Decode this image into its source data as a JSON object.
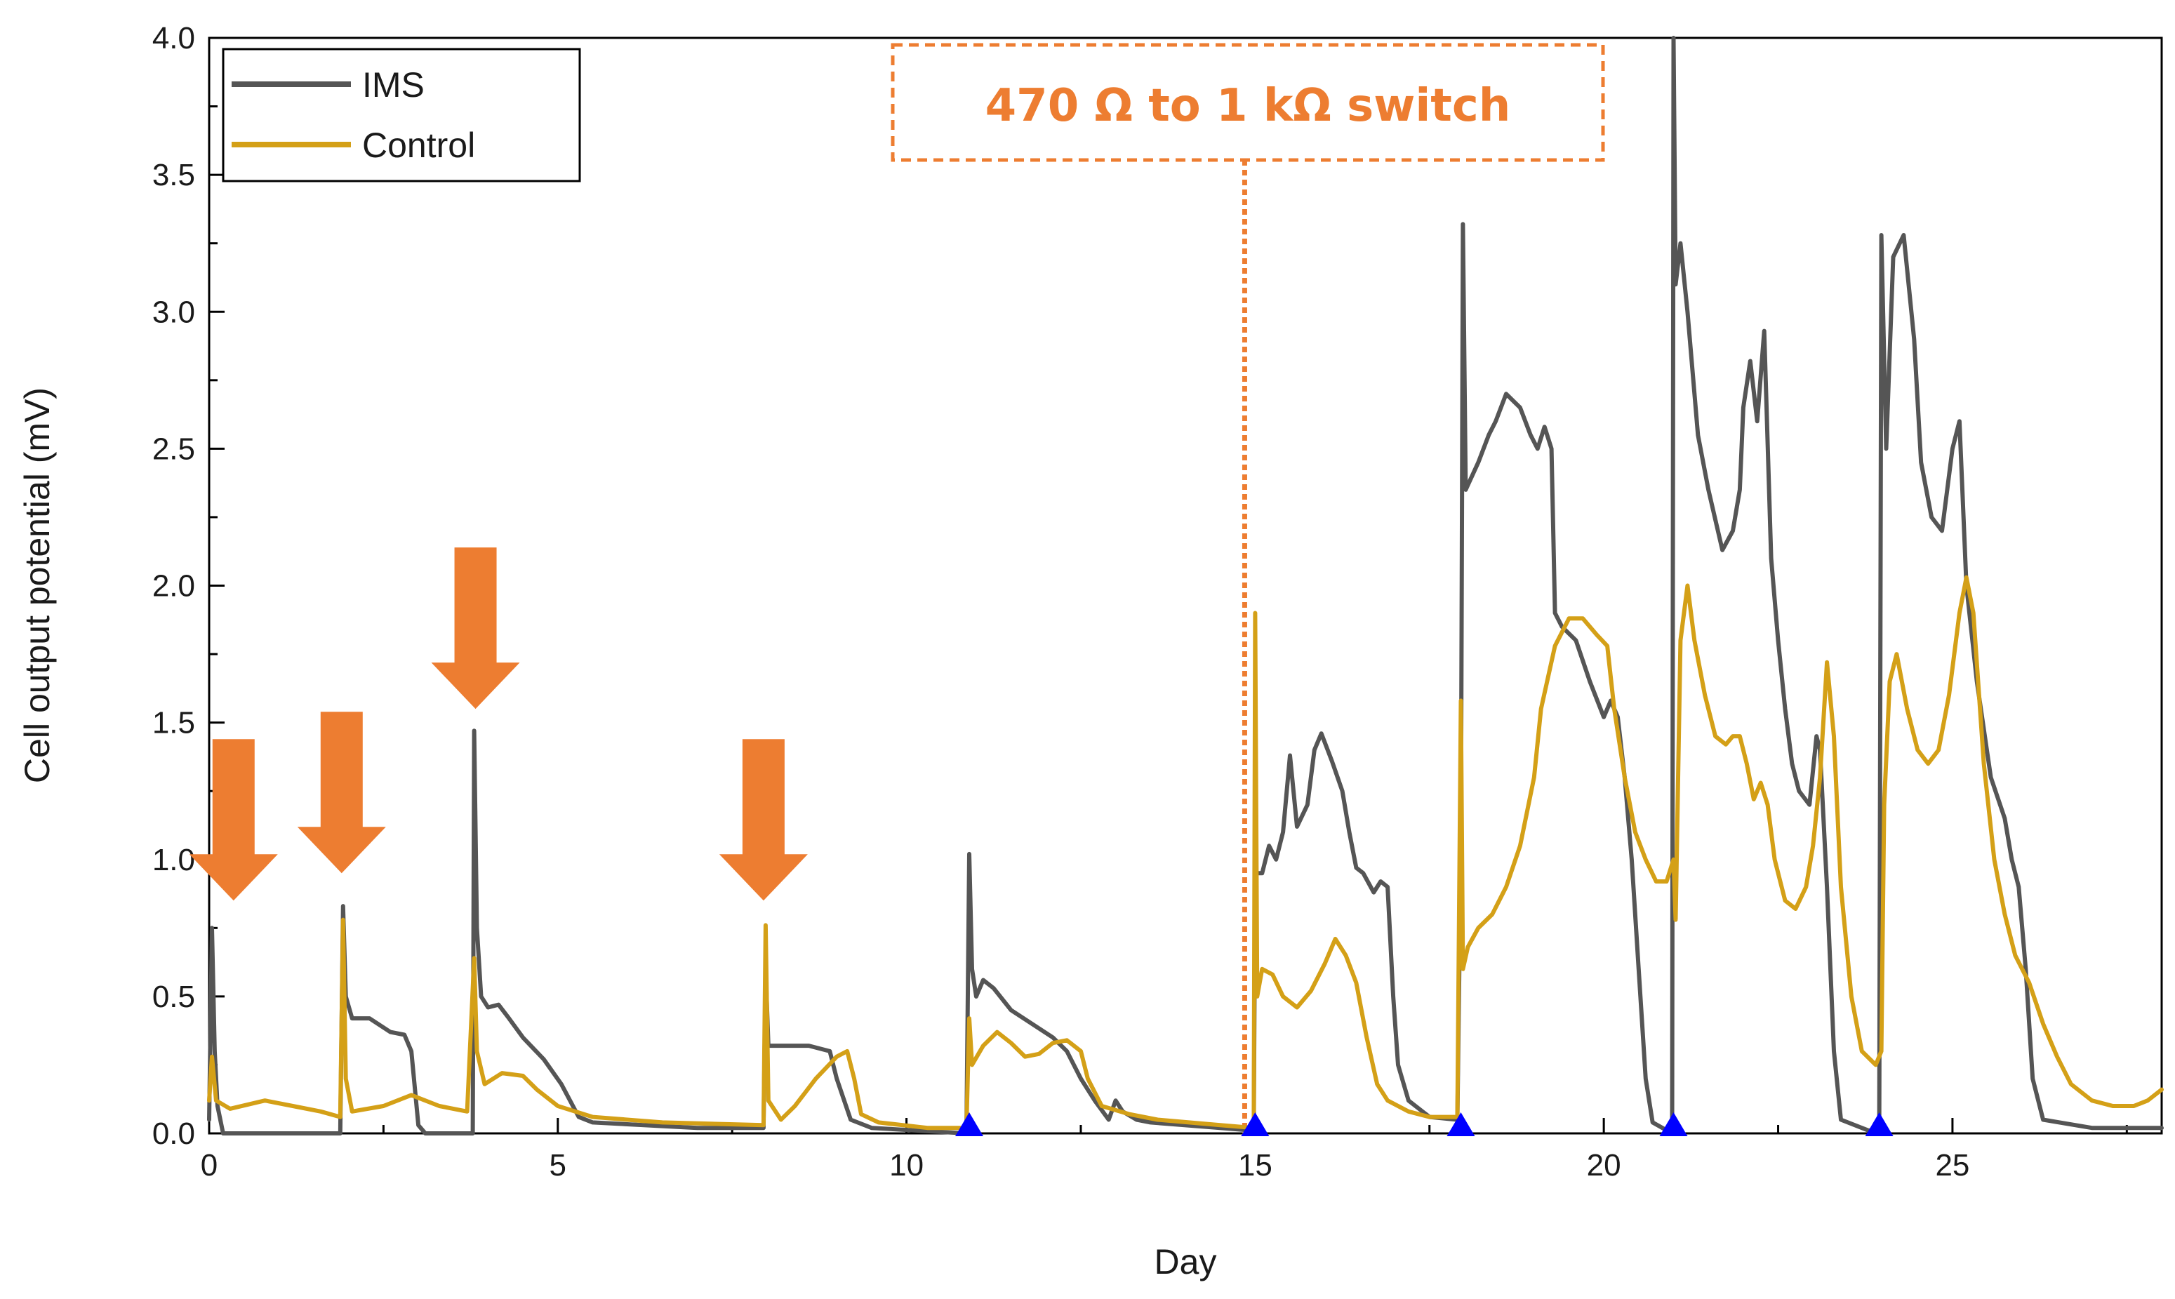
{
  "chart_data": {
    "type": "line",
    "title": "",
    "xlabel": "Day",
    "ylabel": "Cell output potential (mV)",
    "xlim": [
      0,
      28
    ],
    "ylim": [
      0,
      4.0
    ],
    "x_ticks": [
      0,
      5,
      10,
      15,
      20,
      25
    ],
    "y_ticks": [
      0.0,
      0.5,
      1.0,
      1.5,
      2.0,
      2.5,
      3.0,
      3.5,
      4.0
    ],
    "x_tick_labels": [
      "0",
      "5",
      "10",
      "15",
      "20",
      "25"
    ],
    "y_tick_labels": [
      "0.0",
      "0.5",
      "1.0",
      "1.5",
      "2.0",
      "2.5",
      "3.0",
      "3.5",
      "4.0"
    ],
    "legend_position": "top-left",
    "series": [
      {
        "name": "IMS",
        "color": "#555555",
        "points": [
          [
            0,
            0.05
          ],
          [
            0.04,
            0.75
          ],
          [
            0.08,
            0.3
          ],
          [
            0.12,
            0.1
          ],
          [
            0.2,
            0.0
          ],
          [
            1.88,
            0.0
          ],
          [
            1.92,
            0.83
          ],
          [
            1.96,
            0.5
          ],
          [
            2.05,
            0.42
          ],
          [
            2.3,
            0.42
          ],
          [
            2.6,
            0.37
          ],
          [
            2.8,
            0.36
          ],
          [
            2.9,
            0.3
          ],
          [
            3.0,
            0.03
          ],
          [
            3.1,
            0.0
          ],
          [
            3.78,
            0.0
          ],
          [
            3.8,
            1.47
          ],
          [
            3.84,
            0.75
          ],
          [
            3.9,
            0.5
          ],
          [
            4.0,
            0.46
          ],
          [
            4.15,
            0.47
          ],
          [
            4.3,
            0.42
          ],
          [
            4.5,
            0.35
          ],
          [
            4.8,
            0.27
          ],
          [
            5.05,
            0.18
          ],
          [
            5.3,
            0.06
          ],
          [
            5.5,
            0.04
          ],
          [
            7.0,
            0.02
          ],
          [
            7.95,
            0.02
          ],
          [
            7.98,
            0.6
          ],
          [
            8.02,
            0.32
          ],
          [
            8.3,
            0.32
          ],
          [
            8.6,
            0.32
          ],
          [
            8.9,
            0.3
          ],
          [
            9.0,
            0.2
          ],
          [
            9.2,
            0.05
          ],
          [
            9.5,
            0.02
          ],
          [
            10.86,
            0.0
          ],
          [
            10.9,
            1.02
          ],
          [
            10.94,
            0.6
          ],
          [
            11.0,
            0.5
          ],
          [
            11.1,
            0.56
          ],
          [
            11.25,
            0.53
          ],
          [
            11.5,
            0.45
          ],
          [
            11.8,
            0.4
          ],
          [
            12.1,
            0.35
          ],
          [
            12.3,
            0.3
          ],
          [
            12.5,
            0.2
          ],
          [
            12.7,
            0.12
          ],
          [
            12.9,
            0.05
          ],
          [
            13.0,
            0.12
          ],
          [
            13.1,
            0.08
          ],
          [
            13.3,
            0.05
          ],
          [
            13.5,
            0.04
          ],
          [
            14.5,
            0.02
          ],
          [
            14.98,
            0.01
          ],
          [
            15.0,
            0.95
          ],
          [
            15.1,
            0.95
          ],
          [
            15.2,
            1.05
          ],
          [
            15.3,
            1.0
          ],
          [
            15.4,
            1.1
          ],
          [
            15.5,
            1.38
          ],
          [
            15.6,
            1.12
          ],
          [
            15.75,
            1.2
          ],
          [
            15.85,
            1.4
          ],
          [
            15.95,
            1.46
          ],
          [
            16.1,
            1.36
          ],
          [
            16.25,
            1.25
          ],
          [
            16.35,
            1.1
          ],
          [
            16.45,
            0.97
          ],
          [
            16.55,
            0.95
          ],
          [
            16.7,
            0.88
          ],
          [
            16.8,
            0.92
          ],
          [
            16.9,
            0.9
          ],
          [
            16.98,
            0.5
          ],
          [
            17.05,
            0.25
          ],
          [
            17.2,
            0.12
          ],
          [
            17.5,
            0.06
          ],
          [
            17.9,
            0.05
          ],
          [
            17.95,
            1.05
          ],
          [
            17.98,
            3.32
          ],
          [
            18.02,
            2.35
          ],
          [
            18.2,
            2.45
          ],
          [
            18.35,
            2.55
          ],
          [
            18.45,
            2.6
          ],
          [
            18.6,
            2.7
          ],
          [
            18.8,
            2.65
          ],
          [
            18.95,
            2.55
          ],
          [
            19.05,
            2.5
          ],
          [
            19.15,
            2.58
          ],
          [
            19.25,
            2.5
          ],
          [
            19.3,
            1.9
          ],
          [
            19.4,
            1.85
          ],
          [
            19.6,
            1.8
          ],
          [
            19.8,
            1.65
          ],
          [
            20.0,
            1.52
          ],
          [
            20.1,
            1.58
          ],
          [
            20.2,
            1.52
          ],
          [
            20.3,
            1.3
          ],
          [
            20.4,
            1.0
          ],
          [
            20.5,
            0.6
          ],
          [
            20.6,
            0.2
          ],
          [
            20.7,
            0.04
          ],
          [
            20.98,
            0.0
          ],
          [
            21.0,
            4.0
          ],
          [
            21.03,
            3.1
          ],
          [
            21.1,
            3.25
          ],
          [
            21.2,
            3.0
          ],
          [
            21.35,
            2.55
          ],
          [
            21.5,
            2.35
          ],
          [
            21.7,
            2.13
          ],
          [
            21.85,
            2.2
          ],
          [
            21.95,
            2.35
          ],
          [
            22.0,
            2.65
          ],
          [
            22.1,
            2.82
          ],
          [
            22.2,
            2.6
          ],
          [
            22.3,
            2.93
          ],
          [
            22.4,
            2.1
          ],
          [
            22.5,
            1.8
          ],
          [
            22.6,
            1.55
          ],
          [
            22.7,
            1.35
          ],
          [
            22.8,
            1.25
          ],
          [
            22.95,
            1.2
          ],
          [
            23.05,
            1.45
          ],
          [
            23.1,
            1.4
          ],
          [
            23.2,
            0.9
          ],
          [
            23.3,
            0.3
          ],
          [
            23.4,
            0.05
          ],
          [
            23.8,
            0.01
          ],
          [
            23.95,
            0.02
          ],
          [
            23.98,
            3.28
          ],
          [
            24.05,
            2.5
          ],
          [
            24.15,
            3.2
          ],
          [
            24.3,
            3.28
          ],
          [
            24.45,
            2.9
          ],
          [
            24.55,
            2.45
          ],
          [
            24.7,
            2.25
          ],
          [
            24.85,
            2.2
          ],
          [
            25.0,
            2.5
          ],
          [
            25.1,
            2.6
          ],
          [
            25.2,
            2.0
          ],
          [
            25.35,
            1.65
          ],
          [
            25.55,
            1.3
          ],
          [
            25.75,
            1.15
          ],
          [
            25.85,
            1.0
          ],
          [
            25.95,
            0.9
          ],
          [
            26.05,
            0.6
          ],
          [
            26.15,
            0.2
          ],
          [
            26.3,
            0.05
          ],
          [
            27.0,
            0.02
          ],
          [
            28.0,
            0.02
          ]
        ]
      },
      {
        "name": "Control",
        "color": "#D4A017",
        "points": [
          [
            0,
            0.12
          ],
          [
            0.04,
            0.28
          ],
          [
            0.1,
            0.12
          ],
          [
            0.3,
            0.09
          ],
          [
            0.8,
            0.12
          ],
          [
            1.2,
            0.1
          ],
          [
            1.6,
            0.08
          ],
          [
            1.88,
            0.06
          ],
          [
            1.92,
            0.78
          ],
          [
            1.96,
            0.2
          ],
          [
            2.05,
            0.08
          ],
          [
            2.5,
            0.1
          ],
          [
            2.9,
            0.14
          ],
          [
            3.3,
            0.1
          ],
          [
            3.7,
            0.08
          ],
          [
            3.8,
            0.64
          ],
          [
            3.84,
            0.3
          ],
          [
            3.95,
            0.18
          ],
          [
            4.2,
            0.22
          ],
          [
            4.5,
            0.21
          ],
          [
            4.7,
            0.16
          ],
          [
            5.0,
            0.1
          ],
          [
            5.5,
            0.06
          ],
          [
            6.5,
            0.04
          ],
          [
            7.95,
            0.03
          ],
          [
            7.98,
            0.76
          ],
          [
            8.02,
            0.12
          ],
          [
            8.2,
            0.05
          ],
          [
            8.4,
            0.1
          ],
          [
            8.7,
            0.2
          ],
          [
            9.0,
            0.28
          ],
          [
            9.15,
            0.3
          ],
          [
            9.25,
            0.2
          ],
          [
            9.35,
            0.07
          ],
          [
            9.6,
            0.04
          ],
          [
            10.3,
            0.02
          ],
          [
            10.86,
            0.02
          ],
          [
            10.9,
            0.42
          ],
          [
            10.94,
            0.25
          ],
          [
            11.1,
            0.32
          ],
          [
            11.3,
            0.37
          ],
          [
            11.5,
            0.33
          ],
          [
            11.7,
            0.28
          ],
          [
            11.9,
            0.29
          ],
          [
            12.1,
            0.33
          ],
          [
            12.3,
            0.34
          ],
          [
            12.5,
            0.3
          ],
          [
            12.6,
            0.2
          ],
          [
            12.8,
            0.1
          ],
          [
            13.2,
            0.07
          ],
          [
            13.6,
            0.05
          ],
          [
            14.5,
            0.03
          ],
          [
            14.98,
            0.02
          ],
          [
            15.0,
            1.9
          ],
          [
            15.03,
            0.5
          ],
          [
            15.1,
            0.6
          ],
          [
            15.25,
            0.58
          ],
          [
            15.4,
            0.5
          ],
          [
            15.6,
            0.46
          ],
          [
            15.8,
            0.52
          ],
          [
            16.0,
            0.62
          ],
          [
            16.15,
            0.71
          ],
          [
            16.3,
            0.65
          ],
          [
            16.45,
            0.55
          ],
          [
            16.6,
            0.35
          ],
          [
            16.75,
            0.18
          ],
          [
            16.9,
            0.12
          ],
          [
            17.2,
            0.08
          ],
          [
            17.5,
            0.06
          ],
          [
            17.9,
            0.06
          ],
          [
            17.95,
            1.58
          ],
          [
            17.98,
            0.6
          ],
          [
            18.05,
            0.68
          ],
          [
            18.2,
            0.75
          ],
          [
            18.4,
            0.8
          ],
          [
            18.6,
            0.9
          ],
          [
            18.8,
            1.05
          ],
          [
            19.0,
            1.3
          ],
          [
            19.1,
            1.55
          ],
          [
            19.3,
            1.78
          ],
          [
            19.5,
            1.88
          ],
          [
            19.7,
            1.88
          ],
          [
            19.9,
            1.82
          ],
          [
            20.05,
            1.78
          ],
          [
            20.15,
            1.55
          ],
          [
            20.3,
            1.3
          ],
          [
            20.45,
            1.1
          ],
          [
            20.6,
            1.0
          ],
          [
            20.75,
            0.92
          ],
          [
            20.9,
            0.92
          ],
          [
            21.0,
            1.0
          ],
          [
            21.03,
            0.78
          ],
          [
            21.1,
            1.8
          ],
          [
            21.2,
            2.0
          ],
          [
            21.3,
            1.8
          ],
          [
            21.45,
            1.6
          ],
          [
            21.6,
            1.45
          ],
          [
            21.75,
            1.42
          ],
          [
            21.85,
            1.45
          ],
          [
            21.95,
            1.45
          ],
          [
            22.05,
            1.35
          ],
          [
            22.15,
            1.22
          ],
          [
            22.25,
            1.28
          ],
          [
            22.35,
            1.2
          ],
          [
            22.45,
            1.0
          ],
          [
            22.6,
            0.85
          ],
          [
            22.75,
            0.82
          ],
          [
            22.9,
            0.9
          ],
          [
            23.0,
            1.05
          ],
          [
            23.1,
            1.3
          ],
          [
            23.2,
            1.72
          ],
          [
            23.3,
            1.45
          ],
          [
            23.4,
            0.9
          ],
          [
            23.55,
            0.5
          ],
          [
            23.7,
            0.3
          ],
          [
            23.9,
            0.25
          ],
          [
            23.98,
            0.3
          ],
          [
            24.02,
            1.2
          ],
          [
            24.1,
            1.65
          ],
          [
            24.2,
            1.75
          ],
          [
            24.35,
            1.55
          ],
          [
            24.5,
            1.4
          ],
          [
            24.65,
            1.35
          ],
          [
            24.8,
            1.4
          ],
          [
            24.95,
            1.6
          ],
          [
            25.1,
            1.9
          ],
          [
            25.2,
            2.03
          ],
          [
            25.3,
            1.9
          ],
          [
            25.45,
            1.35
          ],
          [
            25.6,
            1.0
          ],
          [
            25.75,
            0.8
          ],
          [
            25.9,
            0.65
          ],
          [
            26.1,
            0.55
          ],
          [
            26.3,
            0.4
          ],
          [
            26.5,
            0.28
          ],
          [
            26.7,
            0.18
          ],
          [
            27.0,
            0.12
          ],
          [
            27.3,
            0.1
          ],
          [
            27.6,
            0.1
          ],
          [
            27.8,
            0.12
          ],
          [
            28.0,
            0.16
          ]
        ]
      }
    ],
    "switch_annotation": {
      "text": "470 Ω to 1 kΩ switch",
      "day": 14.85,
      "color": "#ED7D31"
    },
    "feed_arrows": {
      "color": "#ED7D31",
      "days": [
        0.35,
        1.9,
        3.82,
        7.95
      ],
      "tip_values": [
        0.85,
        0.95,
        1.55,
        0.85
      ]
    },
    "triangle_markers": {
      "color": "#0000FF",
      "days": [
        10.9,
        15.0,
        17.95,
        21.0,
        23.95
      ]
    }
  }
}
